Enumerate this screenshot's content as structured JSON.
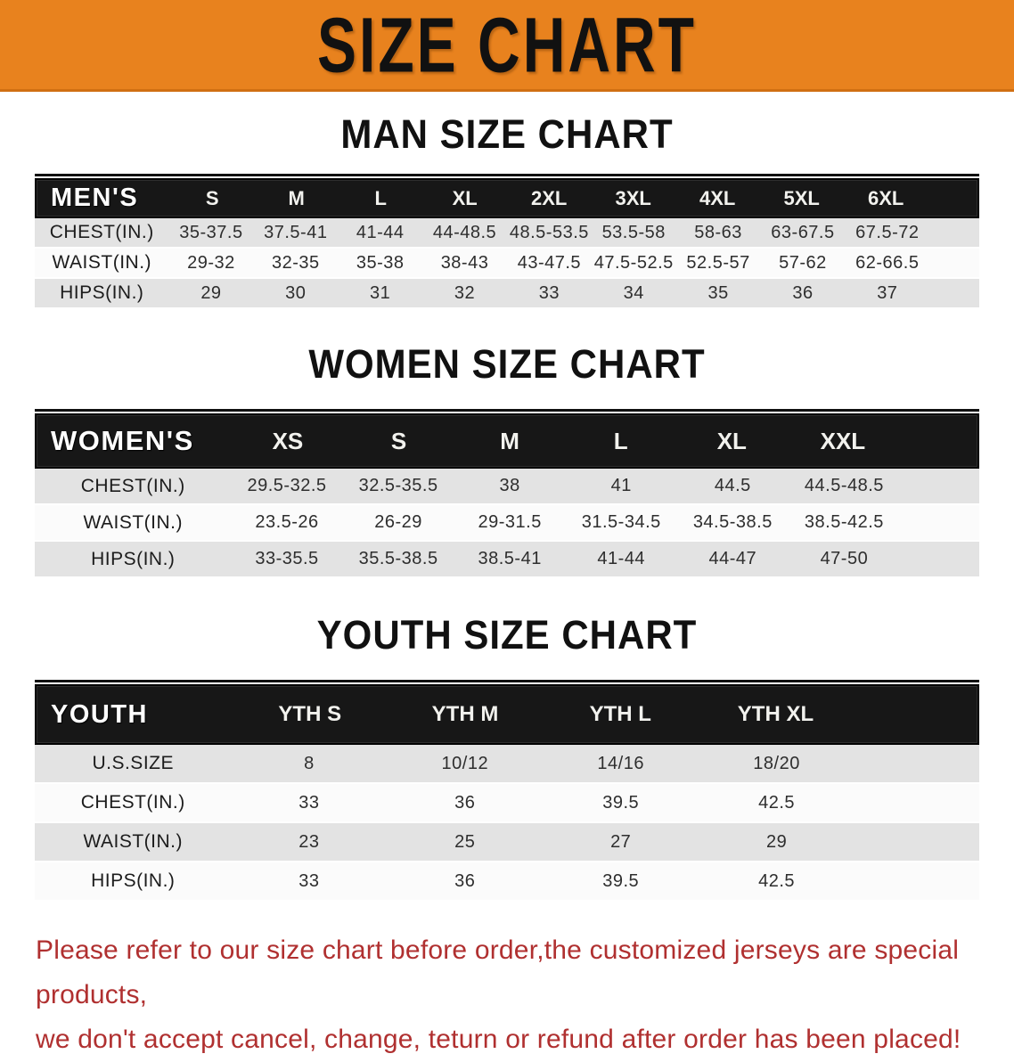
{
  "banner": {
    "title": "SIZE CHART",
    "bg_color": "#e8821e",
    "text_color": "#111111"
  },
  "sections": [
    {
      "heading": "MAN SIZE CHART",
      "table": {
        "corner": "MEN'S",
        "columns": [
          "S",
          "M",
          "L",
          "XL",
          "2XL",
          "3XL",
          "4XL",
          "5XL",
          "6XL"
        ],
        "rows": [
          {
            "label": "CHEST(IN.)",
            "values": [
              "35-37.5",
              "37.5-41",
              "41-44",
              "44-48.5",
              "48.5-53.5",
              "53.5-58",
              "58-63",
              "63-67.5",
              "67.5-72"
            ]
          },
          {
            "label": "WAIST(IN.)",
            "values": [
              "29-32",
              "32-35",
              "35-38",
              "38-43",
              "43-47.5",
              "47.5-52.5",
              "52.5-57",
              "57-62",
              "62-66.5"
            ]
          },
          {
            "label": "HIPS(IN.)",
            "values": [
              "29",
              "30",
              "31",
              "32",
              "33",
              "34",
              "35",
              "36",
              "37"
            ]
          }
        ]
      }
    },
    {
      "heading": "WOMEN SIZE CHART",
      "table": {
        "corner": "WOMEN'S",
        "columns": [
          "XS",
          "S",
          "M",
          "L",
          "XL",
          "XXL"
        ],
        "rows": [
          {
            "label": "CHEST(IN.)",
            "values": [
              "29.5-32.5",
              "32.5-35.5",
              "38",
              "41",
              "44.5",
              "44.5-48.5"
            ]
          },
          {
            "label": "WAIST(IN.)",
            "values": [
              "23.5-26",
              "26-29",
              "29-31.5",
              "31.5-34.5",
              "34.5-38.5",
              "38.5-42.5"
            ]
          },
          {
            "label": "HIPS(IN.)",
            "values": [
              "33-35.5",
              "35.5-38.5",
              "38.5-41",
              "41-44",
              "44-47",
              "47-50"
            ]
          }
        ]
      }
    },
    {
      "heading": "YOUTH SIZE CHART",
      "table": {
        "corner": "YOUTH",
        "columns": [
          "YTH S",
          "YTH M",
          "YTH L",
          "YTH XL"
        ],
        "rows": [
          {
            "label": "U.S.SIZE",
            "values": [
              "8",
              "10/12",
              "14/16",
              "18/20"
            ]
          },
          {
            "label": "CHEST(IN.)",
            "values": [
              "33",
              "36",
              "39.5",
              "42.5"
            ]
          },
          {
            "label": "WAIST(IN.)",
            "values": [
              "23",
              "25",
              "27",
              "29"
            ]
          },
          {
            "label": "HIPS(IN.)",
            "values": [
              "33",
              "36",
              "39.5",
              "42.5"
            ]
          }
        ]
      }
    }
  ],
  "disclaimer": {
    "line1": "Please refer to our size chart before order,the customized jerseys are special products,",
    "line2": "we don't accept cancel, change, teturn or refund after order has been placed!",
    "color": "#b03030"
  },
  "colors": {
    "header_bar": "#171717",
    "row_shade": "#e3e3e3",
    "banner_orange": "#e8821e"
  }
}
